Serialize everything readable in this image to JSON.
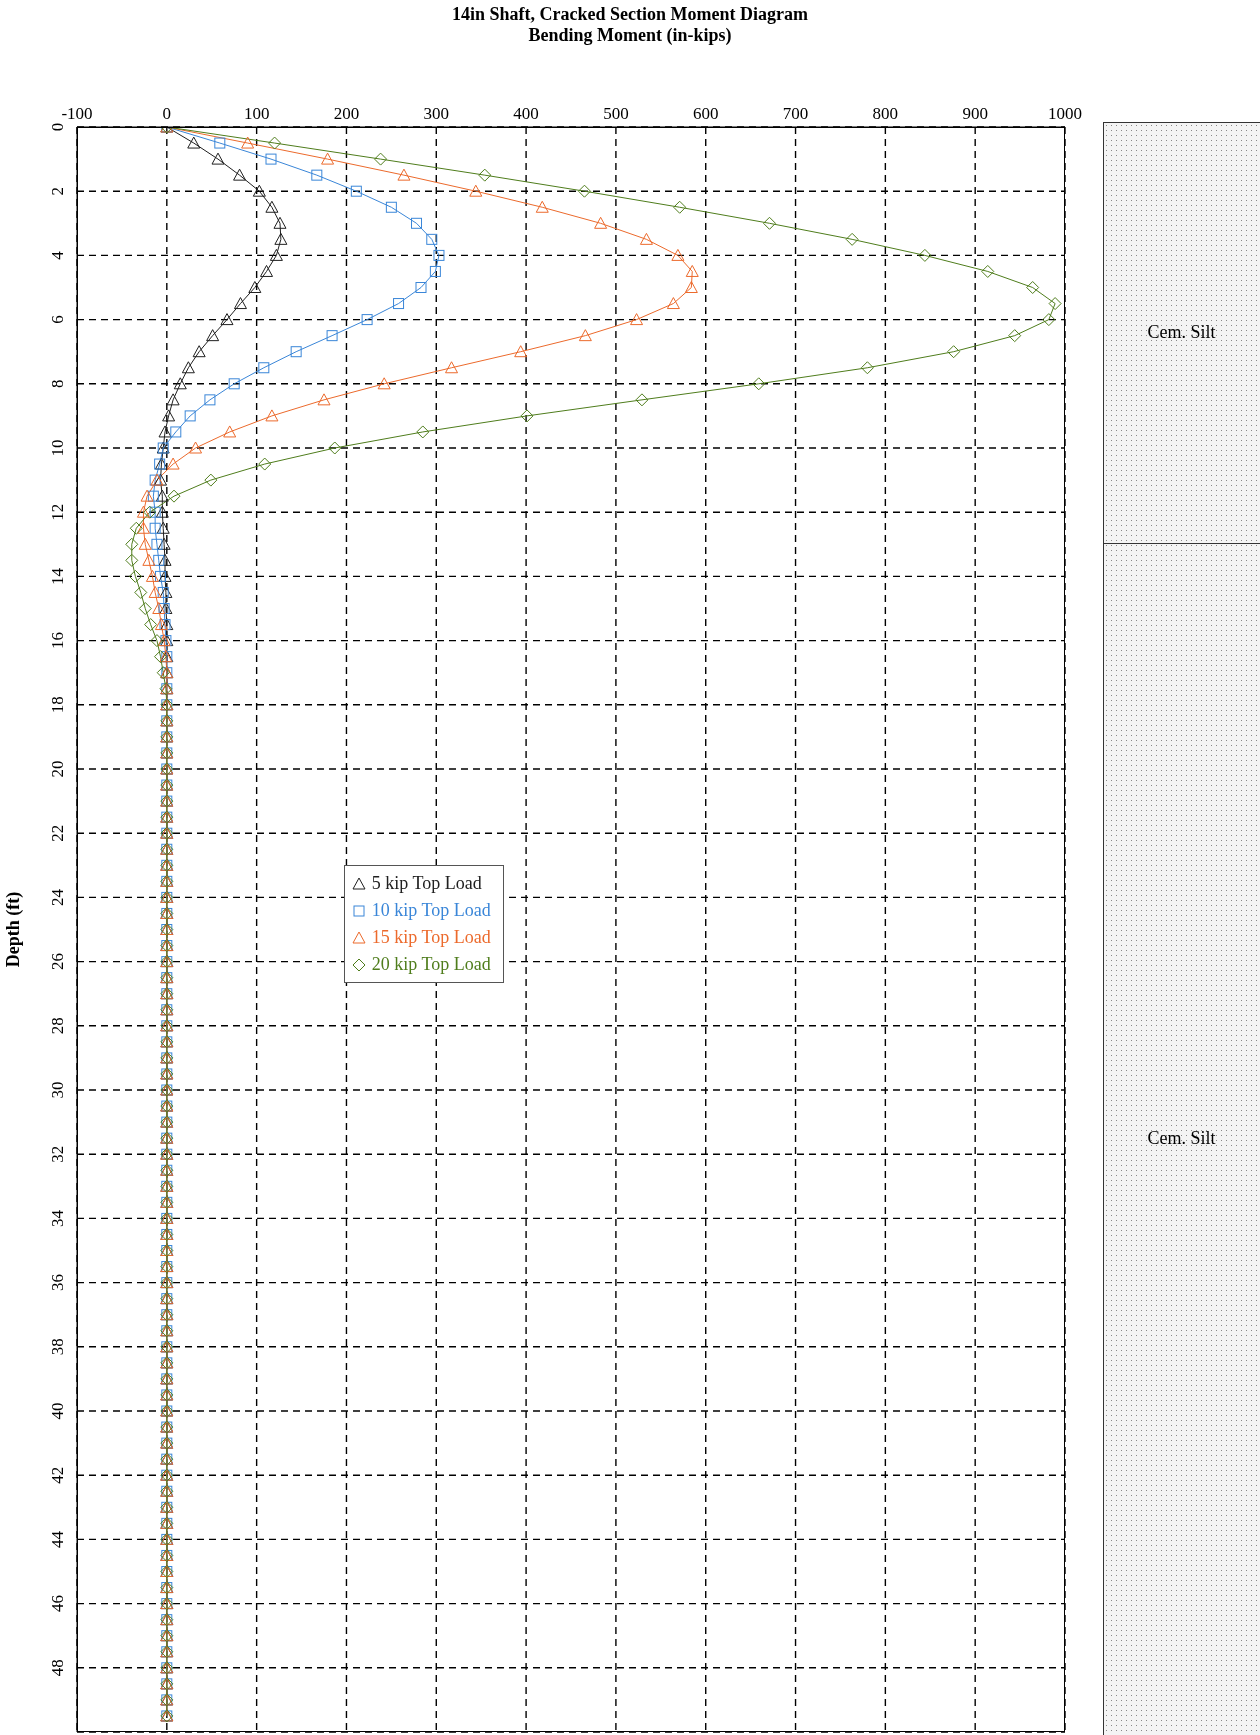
{
  "chart_data": {
    "type": "line",
    "title": "14in Shaft, Cracked Section Moment Diagram",
    "xlabel": "Bending Moment (in-kips)",
    "ylabel": "Depth (ft)",
    "orientation": "horizontal",
    "x": [
      0,
      0.5,
      1,
      1.5,
      2,
      2.5,
      3,
      3.5,
      4,
      4.5,
      5,
      5.5,
      6,
      6.5,
      7,
      7.5,
      8,
      8.5,
      9,
      9.5,
      10,
      10.5,
      11,
      11.5,
      12,
      12.5,
      13,
      13.5,
      14,
      14.5,
      15,
      15.5,
      16,
      16.5,
      17,
      17.5,
      18,
      18.5,
      19,
      19.5,
      20,
      20.5,
      21,
      21.5,
      22,
      22.5,
      23,
      23.5,
      24,
      24.5,
      25,
      25.5,
      26,
      26.5,
      27,
      27.5,
      28,
      28.5,
      29,
      29.5,
      30,
      30.5,
      31,
      31.5,
      32,
      32.5,
      33,
      33.5,
      34,
      34.5,
      35,
      35.5,
      36,
      36.5,
      37,
      37.5,
      38,
      38.5,
      39,
      39.5,
      40,
      40.5,
      41,
      41.5,
      42,
      42.5,
      43,
      43.5,
      44,
      44.5,
      45,
      45.5,
      46,
      46.5,
      47,
      47.5,
      48,
      48.5,
      49,
      49.5
    ],
    "series": [
      {
        "name": "5 kip Top Load",
        "color": "#202020",
        "marker": "triangle",
        "values": [
          0,
          30,
          57,
          81,
          103,
          117,
          126,
          127,
          122,
          111,
          98,
          82,
          67,
          51,
          36,
          24,
          15,
          7,
          2,
          -2,
          -4,
          -6,
          -7,
          -5,
          -5,
          -4,
          -3,
          -2,
          -2,
          -1,
          -1,
          0,
          0,
          0,
          0,
          0,
          0,
          0,
          0,
          0,
          0,
          0,
          0,
          0,
          0,
          0,
          0,
          0,
          0,
          0,
          0,
          0,
          0,
          0,
          0,
          0,
          0,
          0,
          0,
          0,
          0,
          0,
          0,
          0,
          0,
          0,
          0,
          0,
          0,
          0,
          0,
          0,
          0,
          0,
          0,
          0,
          0,
          0,
          0,
          0,
          0,
          0,
          0,
          0,
          0,
          0,
          0,
          0,
          0,
          0,
          0,
          0,
          0,
          0,
          0,
          0,
          0,
          0,
          0,
          0
        ]
      },
      {
        "name": "10 kip Top Load",
        "color": "#3a86d8",
        "marker": "square",
        "values": [
          0,
          59,
          116,
          167,
          211,
          250,
          278,
          295,
          303,
          299,
          283,
          258,
          223,
          184,
          144,
          108,
          75,
          48,
          26,
          10,
          -4,
          -8,
          -13,
          -15,
          -13,
          -13,
          -11,
          -9,
          -7,
          -4,
          -3,
          -2,
          -1,
          0,
          0,
          0,
          0,
          0,
          0,
          0,
          0,
          0,
          0,
          0,
          0,
          0,
          0,
          0,
          0,
          0,
          0,
          0,
          0,
          0,
          0,
          0,
          0,
          0,
          0,
          0,
          0,
          0,
          0,
          0,
          0,
          0,
          0,
          0,
          0,
          0,
          0,
          0,
          0,
          0,
          0,
          0,
          0,
          0,
          0,
          0,
          0,
          0,
          0,
          0,
          0,
          0,
          0,
          0,
          0,
          0,
          0,
          0,
          0,
          0,
          0,
          0,
          0,
          0,
          0,
          0
        ]
      },
      {
        "name": "15 kip Top Load",
        "color": "#ec6a2c",
        "marker": "triangle",
        "values": [
          0,
          90,
          179,
          264,
          344,
          418,
          483,
          534,
          569,
          585,
          584,
          564,
          523,
          466,
          394,
          317,
          242,
          175,
          117,
          70,
          32,
          7,
          -11,
          -22,
          -26,
          -26,
          -24,
          -20,
          -16,
          -13,
          -9,
          -6,
          -3,
          -1,
          0,
          0,
          0,
          0,
          0,
          0,
          0,
          0,
          0,
          0,
          0,
          0,
          0,
          0,
          0,
          0,
          0,
          0,
          0,
          0,
          0,
          0,
          0,
          0,
          0,
          0,
          0,
          0,
          0,
          0,
          0,
          0,
          0,
          0,
          0,
          0,
          0,
          0,
          0,
          0,
          0,
          0,
          0,
          0,
          0,
          0,
          0,
          0,
          0,
          0,
          0,
          0,
          0,
          0,
          0,
          0,
          0,
          0,
          0,
          0,
          0,
          0,
          0,
          0,
          0,
          0
        ]
      },
      {
        "name": "20 kip Top Load",
        "color": "#4f7d1c",
        "marker": "diamond",
        "values": [
          0,
          120,
          238,
          354,
          465,
          571,
          671,
          763,
          844,
          914,
          964,
          989,
          982,
          944,
          876,
          780,
          659,
          529,
          401,
          285,
          187,
          109,
          49,
          8,
          -19,
          -34,
          -39,
          -39,
          -35,
          -29,
          -24,
          -18,
          -11,
          -7,
          -4,
          -1,
          0,
          0,
          0,
          0,
          0,
          0,
          0,
          0,
          0,
          0,
          0,
          0,
          0,
          0,
          0,
          0,
          0,
          0,
          0,
          0,
          0,
          0,
          0,
          0,
          0,
          0,
          0,
          0,
          0,
          0,
          0,
          0,
          0,
          0,
          0,
          0,
          0,
          0,
          0,
          0,
          0,
          0,
          0,
          0,
          0,
          0,
          0,
          0,
          0,
          0,
          0,
          0,
          0,
          0,
          0,
          0,
          0,
          0,
          0,
          0,
          0,
          0,
          0,
          0
        ]
      }
    ],
    "xlim": [
      -100,
      1000
    ],
    "xticks": [
      -100,
      0,
      100,
      200,
      300,
      400,
      500,
      600,
      700,
      800,
      900,
      1000
    ],
    "ylim": [
      50,
      0
    ],
    "yticks": [
      0,
      2,
      4,
      6,
      8,
      10,
      12,
      14,
      16,
      18,
      20,
      22,
      24,
      26,
      28,
      30,
      32,
      34,
      36,
      38,
      40,
      42,
      44,
      46,
      48
    ],
    "grid": true,
    "line_style": "solid",
    "legend": "center",
    "annotations": [
      "Cem. Silt",
      "Cem. Silt"
    ]
  }
}
